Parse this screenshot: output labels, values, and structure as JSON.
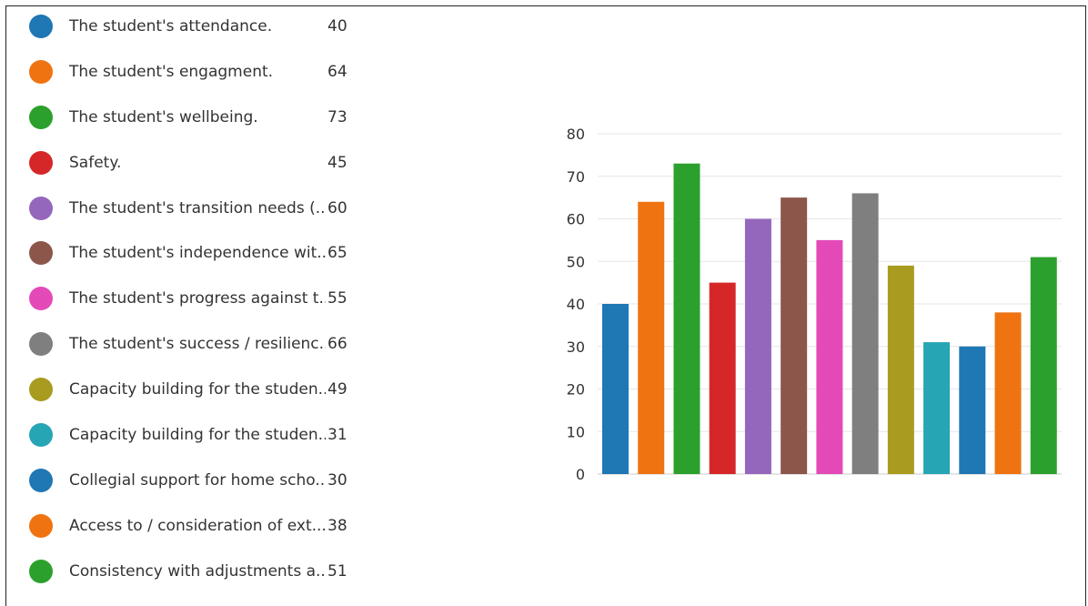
{
  "chart_data": {
    "type": "bar",
    "categories": [
      "The student's attendance.",
      "The student's engagment.",
      "The student's wellbeing.",
      "Safety.",
      "The student's transition needs (...",
      "The student's independence wit...",
      "The student's progress against t...",
      "The student's success / resilienc...",
      "Capacity building for the studen...",
      "Capacity building for the studen...",
      "Collegial support for home scho...",
      "Access to / consideration of ext...",
      "Consistency with adjustments a..."
    ],
    "values": [
      40,
      64,
      73,
      45,
      60,
      65,
      55,
      66,
      49,
      31,
      30,
      38,
      51
    ],
    "display_values": [
      "40",
      "64",
      "73",
      "45",
      "60",
      "65",
      "55",
      "66",
      "49",
      "31",
      "30",
      "38",
      "51"
    ],
    "colors": [
      "#1f77b4",
      "#ef7311",
      "#2ca02c",
      "#d62728",
      "#9467bd",
      "#8c564b",
      "#e34ab8",
      "#7f7f7f",
      "#a89b1f",
      "#26a5b5",
      "#1f77b4",
      "#ef7311",
      "#2ca02c"
    ],
    "ylim": [
      0,
      80
    ],
    "yticks": [
      0,
      10,
      20,
      30,
      40,
      50,
      60,
      70,
      80
    ],
    "ytick_labels": [
      "0",
      "10",
      "20",
      "30",
      "40",
      "50",
      "60",
      "70",
      "80"
    ],
    "grid": true,
    "legend_position": "left",
    "title": "",
    "xlabel": "",
    "ylabel": ""
  }
}
